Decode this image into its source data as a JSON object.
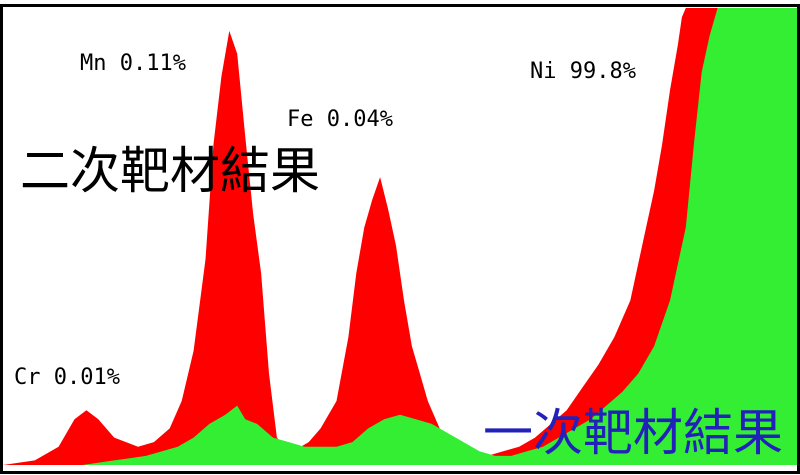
{
  "chart_data": {
    "type": "area",
    "title": "",
    "xlabel": "",
    "ylabel": "",
    "grid": false,
    "legend": "none",
    "x_range": [
      0,
      100
    ],
    "y_range": [
      0,
      100
    ],
    "series": [
      {
        "key": "secondary",
        "color": "#ff0000",
        "x": [
          0,
          4,
          7,
          9,
          10.5,
          12,
          14,
          17,
          19,
          21,
          22.5,
          24,
          25.5,
          26.5,
          27.5,
          28.5,
          29.5,
          30.5,
          31.5,
          32.5,
          33.5,
          34.5,
          35.5,
          36.5,
          37.5,
          38.5,
          40,
          42,
          43.5,
          44.5,
          45.5,
          46.5,
          47.5,
          48.5,
          49.5,
          50.5,
          51.5,
          52.5,
          53.5,
          54.5,
          55.5,
          57,
          59,
          61,
          63,
          65,
          67,
          69,
          71,
          73,
          75,
          77,
          79,
          80,
          81,
          82,
          83,
          84,
          85,
          85.5,
          86,
          86.5,
          87,
          100
        ],
        "y": [
          0,
          1,
          4,
          10,
          12,
          10,
          6,
          4,
          5,
          8,
          14,
          25,
          45,
          70,
          85,
          95,
          90,
          72,
          55,
          42,
          20,
          6,
          4,
          4,
          4,
          5,
          8,
          14,
          28,
          42,
          52,
          58,
          63,
          56,
          48,
          36,
          26,
          20,
          14,
          10,
          6,
          3,
          2,
          2,
          3,
          4,
          6,
          9,
          12,
          17,
          22,
          28,
          36,
          44,
          52,
          60,
          70,
          82,
          92,
          98,
          100,
          100,
          100,
          100
        ]
      },
      {
        "key": "primary",
        "color": "#33ee33",
        "x": [
          0,
          5,
          10,
          14,
          18,
          22,
          24,
          26,
          28,
          29.5,
          30.5,
          32,
          34,
          36,
          38,
          40,
          42,
          44,
          46,
          48,
          50,
          52,
          54,
          56,
          58,
          60,
          62,
          64,
          66,
          68,
          70,
          72,
          74,
          76,
          78,
          80,
          82,
          84,
          86,
          87,
          88,
          89,
          90,
          100
        ],
        "y": [
          0,
          0,
          0,
          1,
          2,
          4,
          6,
          9,
          11,
          13,
          10,
          9,
          6,
          5,
          4,
          4,
          4,
          5,
          8,
          10,
          11,
          10,
          9,
          7,
          5,
          3,
          2,
          2,
          3,
          4,
          6,
          8,
          10,
          13,
          16,
          20,
          26,
          36,
          52,
          70,
          86,
          94,
          100,
          100
        ]
      }
    ]
  },
  "annotations": {
    "cr": "Cr 0.01%",
    "mn": "Mn 0.11%",
    "fe": "Fe 0.04%",
    "ni": "Ni 99.8%",
    "secondary_result": "二次靶材結果",
    "primary_result": "一次靶材結果"
  },
  "colors": {
    "secondary_result_text": "#000000",
    "primary_result_text": "#2222bb",
    "frame": "#000000"
  }
}
